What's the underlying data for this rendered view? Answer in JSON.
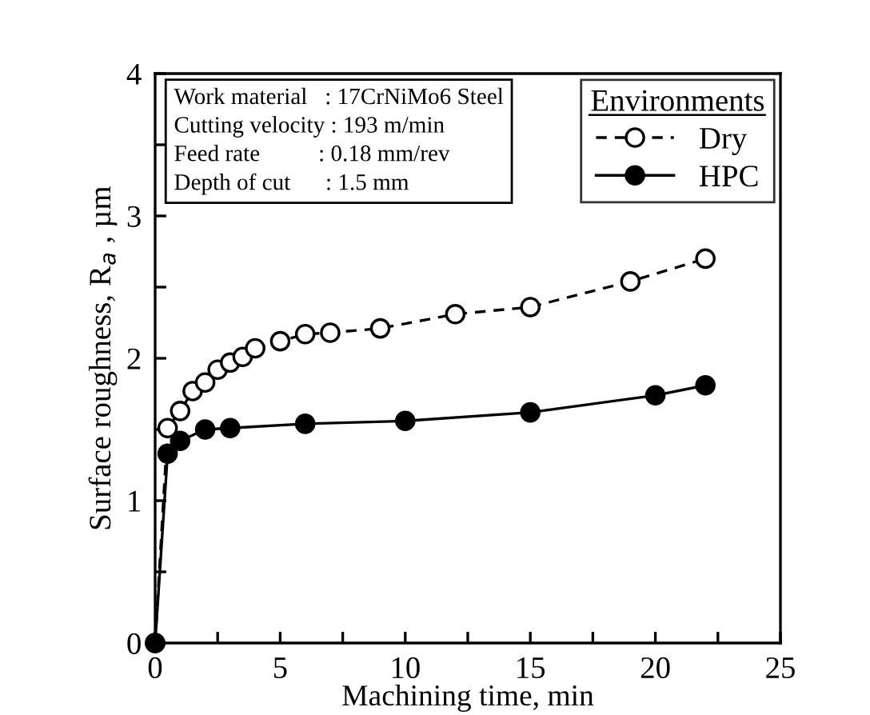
{
  "chart_data": {
    "type": "line",
    "xlabel": "Machining time, min",
    "ylabel": "Surface roughness, R$_{a}$ , µm",
    "legend_title": "Environments",
    "legend": "top right",
    "annotations": [
      "Work material   : 17CrNiMo6 Steel",
      "Cutting velocity : 193 m/min",
      "Feed rate          : 0.18 mm/rev",
      "Depth of cut      : 1.5 mm"
    ],
    "xlim": [
      0,
      25
    ],
    "ylim": [
      0,
      4
    ],
    "xticks": [
      0,
      {
        "value": 2.5,
        "label": null
      },
      5,
      {
        "value": 7.5,
        "label": null
      },
      10,
      {
        "value": 12.5,
        "label": null
      },
      15,
      {
        "value": 17.5,
        "label": null
      },
      20,
      {
        "value": 22.5,
        "label": null
      },
      25
    ],
    "yticks": [
      0,
      {
        "value": 0.5,
        "label": null
      },
      1,
      {
        "value": 1.5,
        "label": null
      },
      2,
      {
        "value": 2.5,
        "label": null
      },
      3,
      {
        "value": 3.5,
        "label": null
      },
      4
    ],
    "grid": false,
    "series": [
      {
        "name": "Dry",
        "color": "#000000",
        "marker": "circle",
        "line_style": "dashed",
        "x": [
          0,
          0.5,
          1,
          1.5,
          2,
          2.5,
          3,
          3.5,
          4,
          5,
          6,
          7,
          9,
          12,
          15,
          19,
          22
        ],
        "values": [
          0,
          1.51,
          1.63,
          1.77,
          1.83,
          1.92,
          1.97,
          2.01,
          2.07,
          2.12,
          2.17,
          2.18,
          2.21,
          2.31,
          2.36,
          2.54,
          2.7
        ]
      },
      {
        "name": "HPC",
        "color": "#000000",
        "marker": "circle",
        "line_style": "solid",
        "x": [
          0,
          0.5,
          1,
          2,
          3,
          6,
          10,
          15,
          20,
          22
        ],
        "values": [
          0,
          1.33,
          1.42,
          1.5,
          1.51,
          1.54,
          1.56,
          1.62,
          1.74,
          1.81
        ]
      }
    ]
  }
}
